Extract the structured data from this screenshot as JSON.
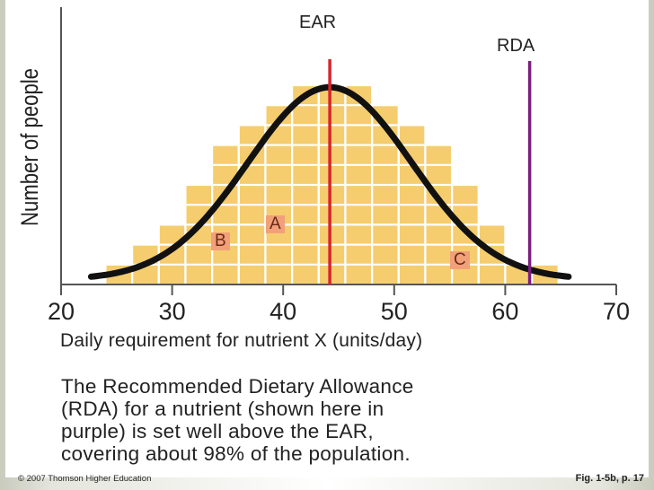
{
  "colors": {
    "bar_fill": "#f5cd6e",
    "grid_line": "#ffffff",
    "curve": "#111111",
    "ear_line": "#d8262c",
    "rda_line": "#7a1f7e",
    "label_bg": "#f2a07a"
  },
  "chart_data": {
    "type": "bar",
    "title": "",
    "xlabel": "Daily requirement for nutrient X (units/day)",
    "ylabel": "Number of people",
    "xlim": [
      20,
      70
    ],
    "x_ticks": [
      "20",
      "30",
      "40",
      "50",
      "60",
      "70"
    ],
    "bin_width": 2.4,
    "bin_starts": [
      24.0,
      26.4,
      28.8,
      31.2,
      33.6,
      36.0,
      38.4,
      40.8,
      43.2,
      45.6,
      48.0,
      50.4,
      52.8,
      55.2,
      57.6,
      60.0,
      62.4
    ],
    "values": [
      1,
      2,
      3,
      5,
      7,
      8,
      9,
      10,
      10,
      10,
      9,
      8,
      7,
      5,
      3,
      1,
      1
    ],
    "curve": {
      "type": "normal",
      "mean": 44.2,
      "peak": 9.9
    },
    "markers": [
      {
        "name": "EAR",
        "x": 44.2
      },
      {
        "name": "RDA",
        "x": 62.2
      }
    ],
    "region_labels": [
      "A",
      "B",
      "C"
    ]
  },
  "caption": {
    "lines": [
      "The Recommended Dietary Allowance",
      "(RDA) for a nutrient (shown here in",
      "purple) is set well above the EAR,",
      "covering about 98% of the population."
    ]
  },
  "footer": {
    "copyright": "© 2007 Thomson Higher Education",
    "figure_ref": "Fig. 1-5b, p. 17"
  }
}
